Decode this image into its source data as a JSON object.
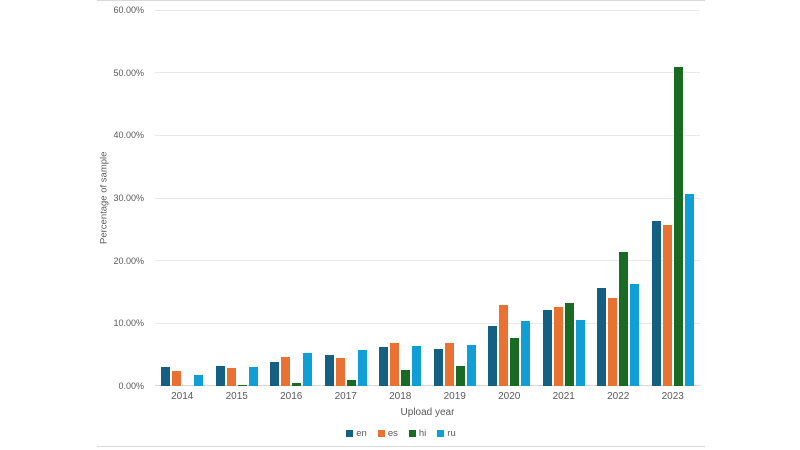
{
  "page": {
    "background": "#ffffff",
    "divider_color": "#d9d9d9"
  },
  "chart_data": {
    "type": "bar",
    "title": "",
    "xlabel": "Upload year",
    "ylabel": "Percentage of sample",
    "categories": [
      "2014",
      "2015",
      "2016",
      "2017",
      "2018",
      "2019",
      "2020",
      "2021",
      "2022",
      "2023"
    ],
    "series": [
      {
        "name": "en",
        "color": "#156082",
        "values": [
          3.0,
          3.2,
          3.9,
          5.0,
          6.2,
          5.9,
          9.6,
          12.2,
          15.7,
          26.3
        ]
      },
      {
        "name": "es",
        "color": "#E97132",
        "values": [
          2.4,
          2.8,
          4.6,
          4.4,
          6.8,
          6.8,
          12.9,
          12.6,
          14.1,
          25.7
        ]
      },
      {
        "name": "hi",
        "color": "#196B24",
        "values": [
          0.0,
          0.1,
          0.5,
          1.0,
          2.6,
          3.2,
          7.6,
          13.3,
          21.4,
          50.9
        ]
      },
      {
        "name": "ru",
        "color": "#0F9ED5",
        "values": [
          1.8,
          3.0,
          5.2,
          5.7,
          6.4,
          6.5,
          10.4,
          10.5,
          16.3,
          30.7
        ]
      }
    ],
    "unit": "%",
    "ylim": [
      0,
      60
    ],
    "ytick_step": 10,
    "ytick_labels": [
      "0.00%",
      "10.00%",
      "20.00%",
      "30.00%",
      "40.00%",
      "50.00%",
      "60.00%"
    ],
    "grid": true,
    "legend_position": "bottom",
    "style": {
      "gridline_color": "#e9e9e9",
      "axis_line_color": "#d6d6d6",
      "tick_text_color": "#595959",
      "axis_title_color": "#595959"
    }
  }
}
